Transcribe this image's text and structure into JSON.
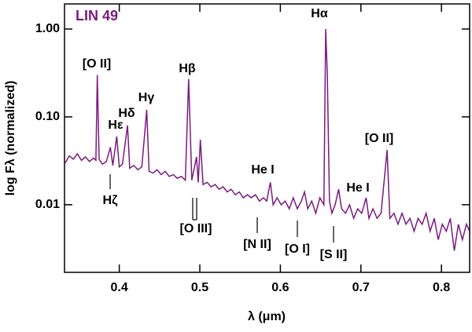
{
  "chart_data": {
    "type": "line",
    "title": "LIN 49",
    "x_label": "λ (μm)",
    "y_label": "log Fλ (normalized)",
    "y_log": true,
    "color": "#7b1a7e",
    "xlim": [
      0.332,
      0.835
    ],
    "ylim": [
      0.0017,
      1.93
    ],
    "xticks": [
      0.4,
      0.5,
      0.6,
      0.7,
      0.8
    ],
    "yticks": [
      0.01,
      {
        "value": 0.1,
        "label": "0.10"
      },
      {
        "value": 1,
        "label": "1.00"
      }
    ],
    "x": [
      0.333,
      0.338,
      0.343,
      0.348,
      0.353,
      0.358,
      0.363,
      0.368,
      0.371,
      0.3727,
      0.375,
      0.379,
      0.384,
      0.3889,
      0.392,
      0.3969,
      0.4,
      0.404,
      0.4102,
      0.413,
      0.418,
      0.423,
      0.428,
      0.4341,
      0.437,
      0.442,
      0.447,
      0.452,
      0.457,
      0.462,
      0.467,
      0.472,
      0.477,
      0.482,
      0.4861,
      0.49,
      0.4959,
      0.498,
      0.5007,
      0.504,
      0.509,
      0.514,
      0.519,
      0.524,
      0.529,
      0.534,
      0.539,
      0.544,
      0.549,
      0.554,
      0.559,
      0.564,
      0.569,
      0.574,
      0.579,
      0.583,
      0.5876,
      0.591,
      0.596,
      0.601,
      0.606,
      0.611,
      0.616,
      0.621,
      0.626,
      0.63,
      0.634,
      0.639,
      0.644,
      0.649,
      0.654,
      0.6563,
      0.6583,
      0.661,
      0.664,
      0.668,
      0.6724,
      0.676,
      0.681,
      0.686,
      0.691,
      0.696,
      0.701,
      0.7065,
      0.71,
      0.715,
      0.72,
      0.725,
      0.7325,
      0.736,
      0.741,
      0.746,
      0.751,
      0.756,
      0.761,
      0.766,
      0.771,
      0.776,
      0.781,
      0.786,
      0.791,
      0.796,
      0.801,
      0.806,
      0.811,
      0.816,
      0.821,
      0.826,
      0.831,
      0.835
    ],
    "values": [
      0.03,
      0.036,
      0.033,
      0.038,
      0.032,
      0.035,
      0.031,
      0.034,
      0.032,
      0.3,
      0.033,
      0.029,
      0.031,
      0.045,
      0.028,
      0.06,
      0.027,
      0.029,
      0.08,
      0.026,
      0.028,
      0.025,
      0.027,
      0.12,
      0.024,
      0.023,
      0.025,
      0.022,
      0.024,
      0.021,
      0.022,
      0.02,
      0.021,
      0.019,
      0.27,
      0.019,
      0.035,
      0.018,
      0.055,
      0.017,
      0.018,
      0.016,
      0.017,
      0.015,
      0.016,
      0.014,
      0.015,
      0.013,
      0.014,
      0.012,
      0.013,
      0.012,
      0.013,
      0.011,
      0.012,
      0.011,
      0.018,
      0.01,
      0.012,
      0.01,
      0.011,
      0.009,
      0.012,
      0.009,
      0.011,
      0.014,
      0.009,
      0.011,
      0.008,
      0.012,
      0.01,
      1.0,
      0.3,
      0.011,
      0.008,
      0.01,
      0.015,
      0.009,
      0.008,
      0.01,
      0.007,
      0.009,
      0.008,
      0.012,
      0.007,
      0.009,
      0.007,
      0.008,
      0.042,
      0.007,
      0.008,
      0.006,
      0.008,
      0.006,
      0.007,
      0.005,
      0.007,
      0.006,
      0.008,
      0.005,
      0.007,
      0.004,
      0.006,
      0.005,
      0.007,
      0.003,
      0.006,
      0.004,
      0.006,
      0.005
    ],
    "annotations": [
      "[O II]",
      "Hε",
      "Hδ",
      "Hγ",
      "Hβ",
      "Hα",
      "[O II]",
      "He I",
      "He I",
      "Hζ",
      "[O III]",
      "[N II]",
      "[O I]",
      "[S II]"
    ]
  }
}
